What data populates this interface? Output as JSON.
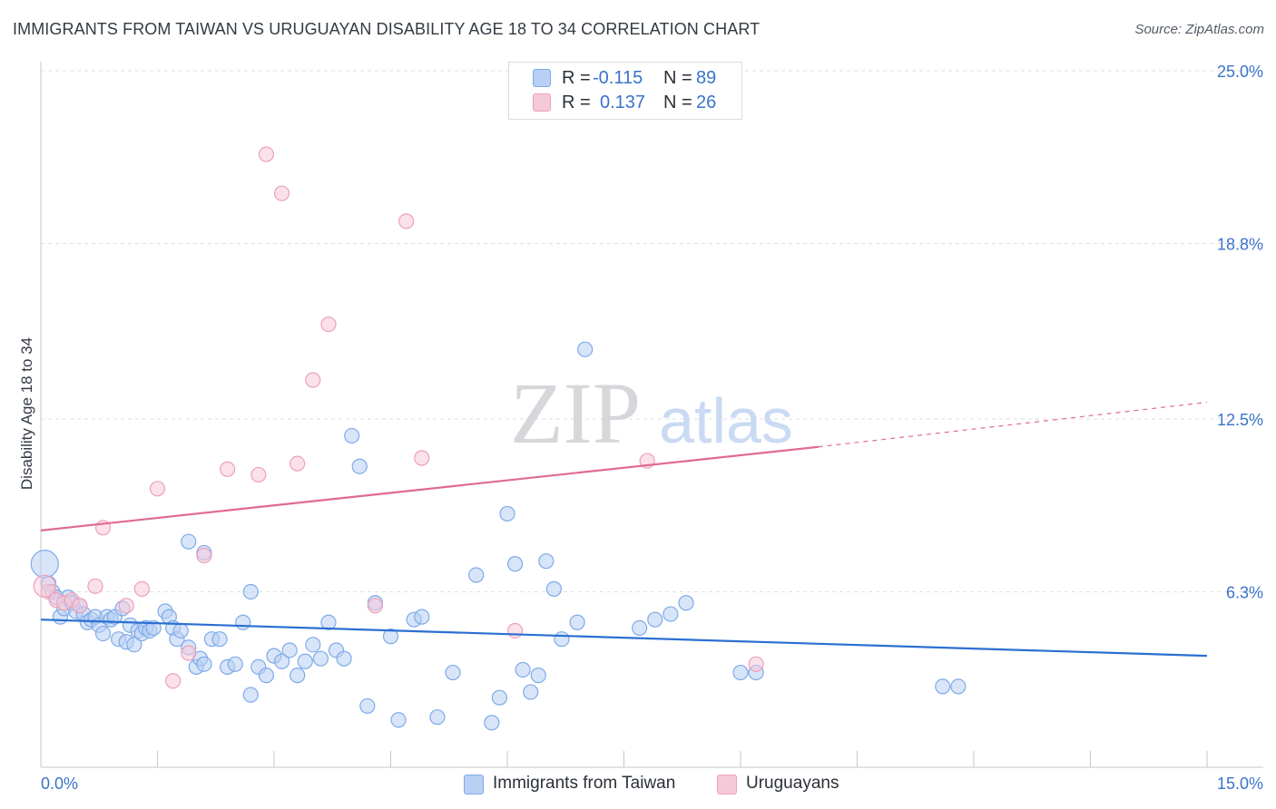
{
  "chart_data": {
    "type": "scatter",
    "title": "IMMIGRANTS FROM TAIWAN VS URUGUAYAN DISABILITY AGE 18 TO 34 CORRELATION CHART",
    "source": "Source: ZipAtlas.com",
    "xlabel": "",
    "ylabel": "Disability Age 18 to 34",
    "xlim": [
      0,
      15
    ],
    "ylim": [
      0,
      25
    ],
    "x_tick_labels": [
      "0.0%",
      "15.0%"
    ],
    "y_ticks": [
      6.3,
      12.5,
      18.8,
      25.0
    ],
    "y_tick_labels": [
      "6.3%",
      "12.5%",
      "18.8%",
      "25.0%"
    ],
    "watermark": {
      "zip": "ZIP",
      "atlas": "atlas"
    },
    "legend": {
      "r_label": "R =",
      "n_label": "N =",
      "entries": [
        {
          "r": "-0.115",
          "n": "89"
        },
        {
          "r": "0.137",
          "n": "26"
        }
      ]
    },
    "series": [
      {
        "name": "Immigrants from Taiwan",
        "color": "#7eaae9",
        "fill": "#b8d0f3",
        "trend_color": "#2a6fd1",
        "trend": {
          "x0": 0,
          "y0": 5.3,
          "x1": 15,
          "y1": 4.0
        },
        "points": [
          [
            0.1,
            6.6
          ],
          [
            0.15,
            6.3
          ],
          [
            0.2,
            6.1
          ],
          [
            0.25,
            5.4
          ],
          [
            0.3,
            5.7
          ],
          [
            0.35,
            6.1
          ],
          [
            0.4,
            5.9
          ],
          [
            0.45,
            5.6
          ],
          [
            0.5,
            5.8
          ],
          [
            0.55,
            5.5
          ],
          [
            0.6,
            5.2
          ],
          [
            0.65,
            5.3
          ],
          [
            0.7,
            5.4
          ],
          [
            0.75,
            5.1
          ],
          [
            0.8,
            4.8
          ],
          [
            0.85,
            5.4
          ],
          [
            0.9,
            5.3
          ],
          [
            0.95,
            5.4
          ],
          [
            1.0,
            4.6
          ],
          [
            1.05,
            5.7
          ],
          [
            1.1,
            4.5
          ],
          [
            1.15,
            5.1
          ],
          [
            1.2,
            4.4
          ],
          [
            1.25,
            4.9
          ],
          [
            1.3,
            4.8
          ],
          [
            1.35,
            5.0
          ],
          [
            1.4,
            4.9
          ],
          [
            1.45,
            5.0
          ],
          [
            1.6,
            5.6
          ],
          [
            1.65,
            5.4
          ],
          [
            1.7,
            5.0
          ],
          [
            1.75,
            4.6
          ],
          [
            1.8,
            4.9
          ],
          [
            1.9,
            4.3
          ],
          [
            2.0,
            3.6
          ],
          [
            2.05,
            3.9
          ],
          [
            2.1,
            3.7
          ],
          [
            2.2,
            4.6
          ],
          [
            2.3,
            4.6
          ],
          [
            2.4,
            3.6
          ],
          [
            2.5,
            3.7
          ],
          [
            2.6,
            5.2
          ],
          [
            2.7,
            2.6
          ],
          [
            2.8,
            3.6
          ],
          [
            2.9,
            3.3
          ],
          [
            3.0,
            4.0
          ],
          [
            3.1,
            3.8
          ],
          [
            3.2,
            4.2
          ],
          [
            3.3,
            3.3
          ],
          [
            3.4,
            3.8
          ],
          [
            3.5,
            4.4
          ],
          [
            3.6,
            3.9
          ],
          [
            3.7,
            5.2
          ],
          [
            3.8,
            4.2
          ],
          [
            3.9,
            3.9
          ],
          [
            4.0,
            11.9
          ],
          [
            4.1,
            10.8
          ],
          [
            4.2,
            2.2
          ],
          [
            4.3,
            5.9
          ],
          [
            4.5,
            4.7
          ],
          [
            4.6,
            1.7
          ],
          [
            4.8,
            5.3
          ],
          [
            4.9,
            5.4
          ],
          [
            5.1,
            1.8
          ],
          [
            5.3,
            3.4
          ],
          [
            5.6,
            6.9
          ],
          [
            5.8,
            1.6
          ],
          [
            5.9,
            2.5
          ],
          [
            6.0,
            9.1
          ],
          [
            6.1,
            7.3
          ],
          [
            6.2,
            3.5
          ],
          [
            6.3,
            2.7
          ],
          [
            6.4,
            3.3
          ],
          [
            6.5,
            7.4
          ],
          [
            6.6,
            6.4
          ],
          [
            6.7,
            4.6
          ],
          [
            6.9,
            5.2
          ],
          [
            7.0,
            15.0
          ],
          [
            7.7,
            5.0
          ],
          [
            7.9,
            5.3
          ],
          [
            8.1,
            5.5
          ],
          [
            8.3,
            5.9
          ],
          [
            9.0,
            3.4
          ],
          [
            9.2,
            3.4
          ],
          [
            11.6,
            2.9
          ],
          [
            11.8,
            2.9
          ],
          [
            1.9,
            8.1
          ],
          [
            2.1,
            7.7
          ],
          [
            2.7,
            6.3
          ]
        ]
      },
      {
        "name": "Uruguayans",
        "color": "#eda0bb",
        "fill": "#f6c9d8",
        "trend_color": "#e06a93",
        "trend": {
          "x0": 0,
          "y0": 8.5,
          "x1": 10,
          "y1": 11.5
        },
        "trend_dash": {
          "x0": 10,
          "y0": 11.5,
          "x1": 15,
          "y1": 13.1
        },
        "points": [
          [
            0.1,
            6.3
          ],
          [
            0.2,
            6.0
          ],
          [
            0.3,
            5.9
          ],
          [
            0.4,
            6.0
          ],
          [
            0.5,
            5.8
          ],
          [
            0.7,
            6.5
          ],
          [
            0.8,
            8.6
          ],
          [
            1.1,
            5.8
          ],
          [
            1.3,
            6.4
          ],
          [
            1.5,
            10.0
          ],
          [
            1.7,
            3.1
          ],
          [
            1.9,
            4.1
          ],
          [
            2.1,
            7.6
          ],
          [
            2.4,
            10.7
          ],
          [
            2.8,
            10.5
          ],
          [
            2.9,
            22.0
          ],
          [
            3.1,
            20.6
          ],
          [
            3.3,
            10.9
          ],
          [
            3.5,
            13.9
          ],
          [
            3.7,
            15.9
          ],
          [
            4.3,
            5.8
          ],
          [
            4.7,
            19.6
          ],
          [
            4.9,
            11.1
          ],
          [
            6.1,
            4.9
          ],
          [
            7.8,
            11.0
          ],
          [
            9.2,
            3.7
          ]
        ]
      }
    ]
  }
}
